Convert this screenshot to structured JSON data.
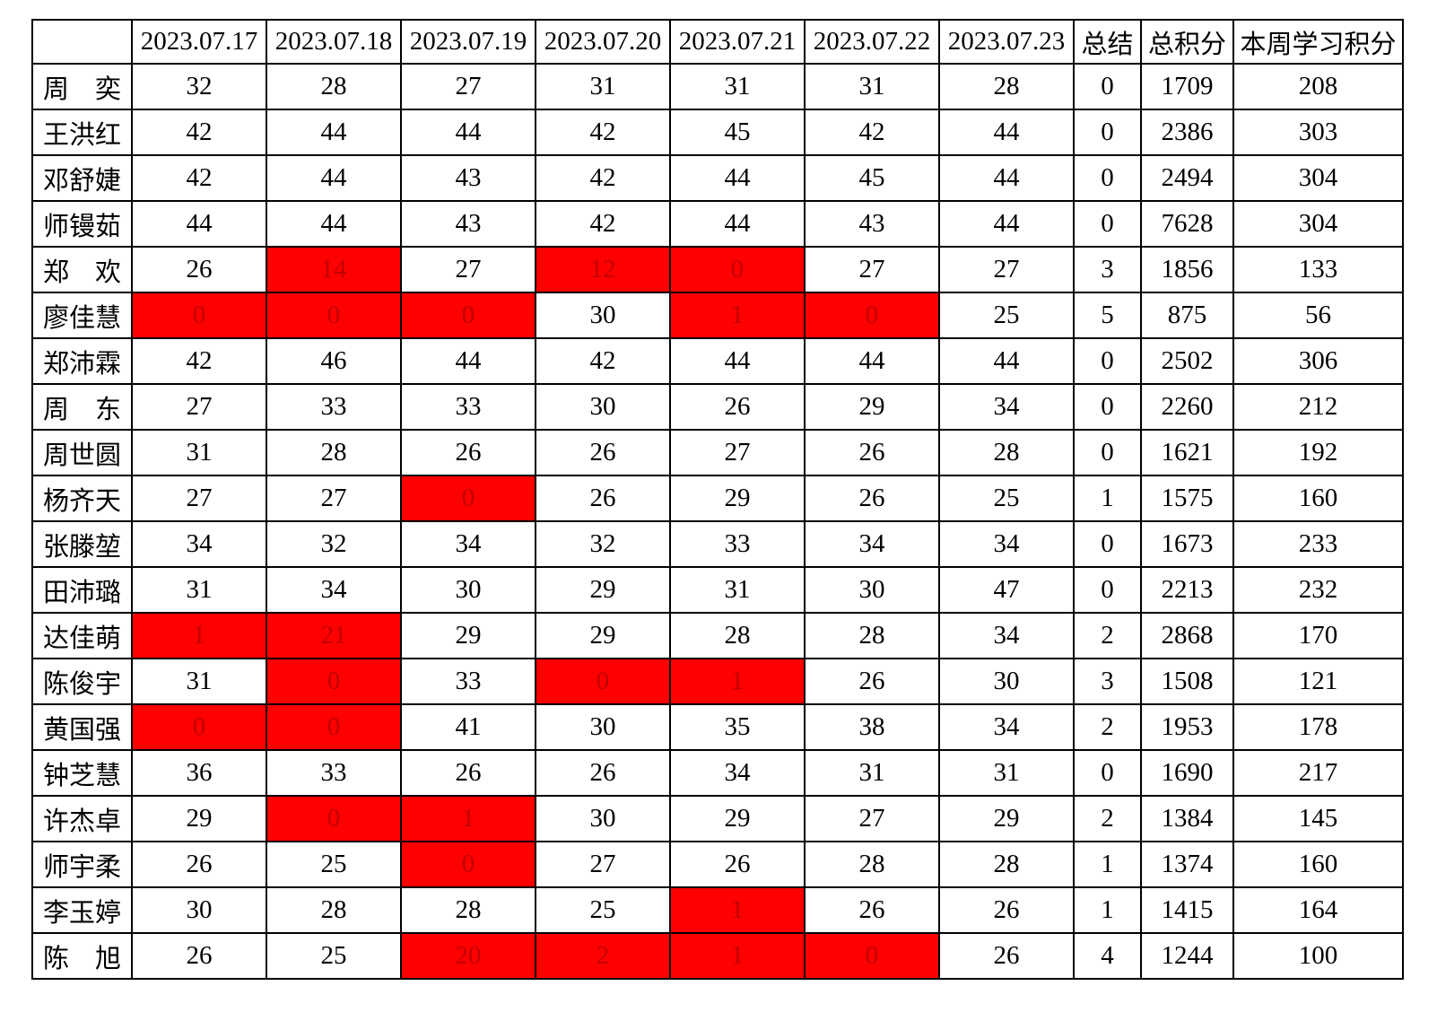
{
  "colors": {
    "accent_text": "#ff0000",
    "highlight_bg": "#ff0000",
    "highlight_text": "#c00000",
    "border": "#000000",
    "body_text": "#000000"
  },
  "table": {
    "header": {
      "corner": "",
      "dates": [
        "2023.07.17",
        "2023.07.18",
        "2023.07.19",
        "2023.07.20",
        "2023.07.21",
        "2023.07.22",
        "2023.07.23"
      ],
      "summary": "总结",
      "total": "总积分",
      "week": "本周学习积分"
    },
    "rows": [
      {
        "name": "周奕",
        "daily": [
          {
            "value": "32",
            "flagged": false
          },
          {
            "value": "28",
            "flagged": false
          },
          {
            "value": "27",
            "flagged": false
          },
          {
            "value": "31",
            "flagged": false
          },
          {
            "value": "31",
            "flagged": false
          },
          {
            "value": "31",
            "flagged": false
          },
          {
            "value": "28",
            "flagged": false
          }
        ],
        "summary": "0",
        "total": "1709",
        "week": "208"
      },
      {
        "name": "王洪红",
        "daily": [
          {
            "value": "42",
            "flagged": false
          },
          {
            "value": "44",
            "flagged": false
          },
          {
            "value": "44",
            "flagged": false
          },
          {
            "value": "42",
            "flagged": false
          },
          {
            "value": "45",
            "flagged": false
          },
          {
            "value": "42",
            "flagged": false
          },
          {
            "value": "44",
            "flagged": false
          }
        ],
        "summary": "0",
        "total": "2386",
        "week": "303"
      },
      {
        "name": "邓舒婕",
        "daily": [
          {
            "value": "42",
            "flagged": false
          },
          {
            "value": "44",
            "flagged": false
          },
          {
            "value": "43",
            "flagged": false
          },
          {
            "value": "42",
            "flagged": false
          },
          {
            "value": "44",
            "flagged": false
          },
          {
            "value": "45",
            "flagged": false
          },
          {
            "value": "44",
            "flagged": false
          }
        ],
        "summary": "0",
        "total": "2494",
        "week": "304"
      },
      {
        "name": "师镘茹",
        "daily": [
          {
            "value": "44",
            "flagged": false
          },
          {
            "value": "44",
            "flagged": false
          },
          {
            "value": "43",
            "flagged": false
          },
          {
            "value": "42",
            "flagged": false
          },
          {
            "value": "44",
            "flagged": false
          },
          {
            "value": "43",
            "flagged": false
          },
          {
            "value": "44",
            "flagged": false
          }
        ],
        "summary": "0",
        "total": "7628",
        "week": "304"
      },
      {
        "name": "郑欢",
        "daily": [
          {
            "value": "26",
            "flagged": false
          },
          {
            "value": "14",
            "flagged": true
          },
          {
            "value": "27",
            "flagged": false
          },
          {
            "value": "12",
            "flagged": true
          },
          {
            "value": "0",
            "flagged": true
          },
          {
            "value": "27",
            "flagged": false
          },
          {
            "value": "27",
            "flagged": false
          }
        ],
        "summary": "3",
        "total": "1856",
        "week": "133"
      },
      {
        "name": "廖佳慧",
        "daily": [
          {
            "value": "0",
            "flagged": true
          },
          {
            "value": "0",
            "flagged": true
          },
          {
            "value": "0",
            "flagged": true
          },
          {
            "value": "30",
            "flagged": false
          },
          {
            "value": "1",
            "flagged": true
          },
          {
            "value": "0",
            "flagged": true
          },
          {
            "value": "25",
            "flagged": false
          }
        ],
        "summary": "5",
        "total": "875",
        "week": "56"
      },
      {
        "name": "郑沛霖",
        "daily": [
          {
            "value": "42",
            "flagged": false
          },
          {
            "value": "46",
            "flagged": false
          },
          {
            "value": "44",
            "flagged": false
          },
          {
            "value": "42",
            "flagged": false
          },
          {
            "value": "44",
            "flagged": false
          },
          {
            "value": "44",
            "flagged": false
          },
          {
            "value": "44",
            "flagged": false
          }
        ],
        "summary": "0",
        "total": "2502",
        "week": "306"
      },
      {
        "name": "周东",
        "daily": [
          {
            "value": "27",
            "flagged": false
          },
          {
            "value": "33",
            "flagged": false
          },
          {
            "value": "33",
            "flagged": false
          },
          {
            "value": "30",
            "flagged": false
          },
          {
            "value": "26",
            "flagged": false
          },
          {
            "value": "29",
            "flagged": false
          },
          {
            "value": "34",
            "flagged": false
          }
        ],
        "summary": "0",
        "total": "2260",
        "week": "212"
      },
      {
        "name": "周世圆",
        "daily": [
          {
            "value": "31",
            "flagged": false
          },
          {
            "value": "28",
            "flagged": false
          },
          {
            "value": "26",
            "flagged": false
          },
          {
            "value": "26",
            "flagged": false
          },
          {
            "value": "27",
            "flagged": false
          },
          {
            "value": "26",
            "flagged": false
          },
          {
            "value": "28",
            "flagged": false
          }
        ],
        "summary": "0",
        "total": "1621",
        "week": "192"
      },
      {
        "name": "杨齐天",
        "daily": [
          {
            "value": "27",
            "flagged": false
          },
          {
            "value": "27",
            "flagged": false
          },
          {
            "value": "0",
            "flagged": true
          },
          {
            "value": "26",
            "flagged": false
          },
          {
            "value": "29",
            "flagged": false
          },
          {
            "value": "26",
            "flagged": false
          },
          {
            "value": "25",
            "flagged": false
          }
        ],
        "summary": "1",
        "total": "1575",
        "week": "160"
      },
      {
        "name": "张滕堃",
        "daily": [
          {
            "value": "34",
            "flagged": false
          },
          {
            "value": "32",
            "flagged": false
          },
          {
            "value": "34",
            "flagged": false
          },
          {
            "value": "32",
            "flagged": false
          },
          {
            "value": "33",
            "flagged": false
          },
          {
            "value": "34",
            "flagged": false
          },
          {
            "value": "34",
            "flagged": false
          }
        ],
        "summary": "0",
        "total": "1673",
        "week": "233"
      },
      {
        "name": "田沛璐",
        "daily": [
          {
            "value": "31",
            "flagged": false
          },
          {
            "value": "34",
            "flagged": false
          },
          {
            "value": "30",
            "flagged": false
          },
          {
            "value": "29",
            "flagged": false
          },
          {
            "value": "31",
            "flagged": false
          },
          {
            "value": "30",
            "flagged": false
          },
          {
            "value": "47",
            "flagged": false
          }
        ],
        "summary": "0",
        "total": "2213",
        "week": "232"
      },
      {
        "name": "达佳萌",
        "daily": [
          {
            "value": "1",
            "flagged": true
          },
          {
            "value": "21",
            "flagged": true
          },
          {
            "value": "29",
            "flagged": false
          },
          {
            "value": "29",
            "flagged": false
          },
          {
            "value": "28",
            "flagged": false
          },
          {
            "value": "28",
            "flagged": false
          },
          {
            "value": "34",
            "flagged": false
          }
        ],
        "summary": "2",
        "total": "2868",
        "week": "170"
      },
      {
        "name": "陈俊宇",
        "daily": [
          {
            "value": "31",
            "flagged": false
          },
          {
            "value": "0",
            "flagged": true
          },
          {
            "value": "33",
            "flagged": false
          },
          {
            "value": "0",
            "flagged": true
          },
          {
            "value": "1",
            "flagged": true
          },
          {
            "value": "26",
            "flagged": false
          },
          {
            "value": "30",
            "flagged": false
          }
        ],
        "summary": "3",
        "total": "1508",
        "week": "121"
      },
      {
        "name": "黄国强",
        "daily": [
          {
            "value": "0",
            "flagged": true
          },
          {
            "value": "0",
            "flagged": true
          },
          {
            "value": "41",
            "flagged": false
          },
          {
            "value": "30",
            "flagged": false
          },
          {
            "value": "35",
            "flagged": false
          },
          {
            "value": "38",
            "flagged": false
          },
          {
            "value": "34",
            "flagged": false
          }
        ],
        "summary": "2",
        "total": "1953",
        "week": "178"
      },
      {
        "name": "钟芝慧",
        "daily": [
          {
            "value": "36",
            "flagged": false
          },
          {
            "value": "33",
            "flagged": false
          },
          {
            "value": "26",
            "flagged": false
          },
          {
            "value": "26",
            "flagged": false
          },
          {
            "value": "34",
            "flagged": false
          },
          {
            "value": "31",
            "flagged": false
          },
          {
            "value": "31",
            "flagged": false
          }
        ],
        "summary": "0",
        "total": "1690",
        "week": "217"
      },
      {
        "name": "许杰卓",
        "daily": [
          {
            "value": "29",
            "flagged": false
          },
          {
            "value": "0",
            "flagged": true
          },
          {
            "value": "1",
            "flagged": true
          },
          {
            "value": "30",
            "flagged": false
          },
          {
            "value": "29",
            "flagged": false
          },
          {
            "value": "27",
            "flagged": false
          },
          {
            "value": "29",
            "flagged": false
          }
        ],
        "summary": "2",
        "total": "1384",
        "week": "145"
      },
      {
        "name": "师宇柔",
        "daily": [
          {
            "value": "26",
            "flagged": false
          },
          {
            "value": "25",
            "flagged": false
          },
          {
            "value": "0",
            "flagged": true
          },
          {
            "value": "27",
            "flagged": false
          },
          {
            "value": "26",
            "flagged": false
          },
          {
            "value": "28",
            "flagged": false
          },
          {
            "value": "28",
            "flagged": false
          }
        ],
        "summary": "1",
        "total": "1374",
        "week": "160"
      },
      {
        "name": "李玉婷",
        "daily": [
          {
            "value": "30",
            "flagged": false
          },
          {
            "value": "28",
            "flagged": false
          },
          {
            "value": "28",
            "flagged": false
          },
          {
            "value": "25",
            "flagged": false
          },
          {
            "value": "1",
            "flagged": true
          },
          {
            "value": "26",
            "flagged": false
          },
          {
            "value": "26",
            "flagged": false
          }
        ],
        "summary": "1",
        "total": "1415",
        "week": "164"
      },
      {
        "name": "陈旭",
        "daily": [
          {
            "value": "26",
            "flagged": false
          },
          {
            "value": "25",
            "flagged": false
          },
          {
            "value": "20",
            "flagged": true
          },
          {
            "value": "2",
            "flagged": true
          },
          {
            "value": "1",
            "flagged": true
          },
          {
            "value": "0",
            "flagged": true
          },
          {
            "value": "26",
            "flagged": false
          }
        ],
        "summary": "4",
        "total": "1244",
        "week": "100"
      }
    ]
  }
}
